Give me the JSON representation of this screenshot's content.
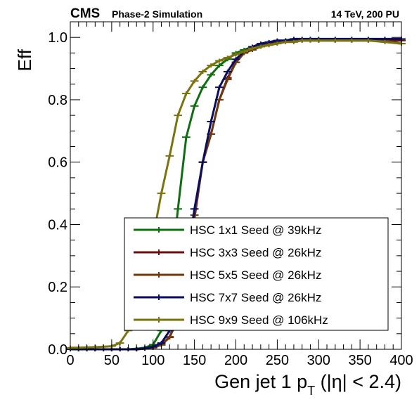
{
  "header": {
    "experiment": "CMS",
    "subtitle": "Phase-2 Simulation",
    "conditions": "14 TeV, 200 PU"
  },
  "chart_data": {
    "type": "line",
    "ylabel": "Eff",
    "xlabel_prefix": "Gen jet 1 p",
    "xlabel_sub": "T",
    "xlabel_suffix": " (|η| < 2.4)",
    "xlim": [
      0,
      400
    ],
    "ylim": [
      0,
      1.05
    ],
    "x_ticks": [
      0,
      50,
      100,
      150,
      200,
      250,
      300,
      350,
      400
    ],
    "x_tick_labels": [
      "0",
      "50",
      "100",
      "150",
      "200",
      "250",
      "300",
      "350",
      "400"
    ],
    "y_ticks": [
      0,
      0.2,
      0.4,
      0.6,
      0.8,
      1.0
    ],
    "y_tick_labels": [
      "0.0",
      "0.2",
      "0.4",
      "0.6",
      "0.8",
      "1.0"
    ],
    "grid": false,
    "legend_position": "bottom-right",
    "series": [
      {
        "name": "HSC 1x1 Seed @ 39kHz",
        "color": "#0f6e0f",
        "x": [
          0,
          10,
          20,
          30,
          40,
          50,
          60,
          70,
          80,
          90,
          100,
          110,
          120,
          130,
          140,
          150,
          160,
          170,
          180,
          190,
          200,
          210,
          220,
          230,
          240,
          250,
          260,
          270,
          280,
          290,
          300,
          320,
          340,
          360,
          380,
          400
        ],
        "y": [
          0.0,
          0.0,
          0.0,
          0.0,
          0.0,
          0.0,
          0.0,
          0.0,
          0.002,
          0.005,
          0.015,
          0.06,
          0.2,
          0.45,
          0.68,
          0.78,
          0.84,
          0.88,
          0.91,
          0.93,
          0.95,
          0.96,
          0.97,
          0.975,
          0.98,
          0.985,
          0.99,
          0.99,
          0.99,
          0.99,
          0.99,
          0.99,
          0.99,
          0.99,
          0.99,
          0.99
        ]
      },
      {
        "name": "HSC 3x3 Seed @ 26kHz",
        "color": "#6b0e0e",
        "x": [
          0,
          10,
          20,
          30,
          40,
          50,
          60,
          70,
          80,
          90,
          100,
          110,
          120,
          130,
          140,
          150,
          160,
          170,
          180,
          190,
          200,
          210,
          220,
          230,
          240,
          250,
          260,
          270,
          280,
          290,
          300,
          320,
          340,
          360,
          380,
          400
        ],
        "y": [
          0.0,
          0.0,
          0.0,
          0.0,
          0.0,
          0.0,
          0.0,
          0.0,
          0.0,
          0.002,
          0.005,
          0.015,
          0.04,
          0.1,
          0.22,
          0.42,
          0.6,
          0.69,
          0.8,
          0.87,
          0.92,
          0.95,
          0.96,
          0.97,
          0.98,
          0.985,
          0.99,
          0.99,
          0.99,
          0.99,
          0.99,
          0.99,
          0.99,
          0.99,
          0.99,
          0.99
        ]
      },
      {
        "name": "HSC 5x5 Seed @ 26kHz",
        "color": "#6e3a0d",
        "x": [
          0,
          10,
          20,
          30,
          40,
          50,
          60,
          70,
          80,
          90,
          100,
          110,
          120,
          130,
          140,
          150,
          160,
          170,
          180,
          190,
          200,
          210,
          220,
          230,
          240,
          250,
          260,
          270,
          280,
          290,
          300,
          320,
          340,
          360,
          380,
          400
        ],
        "y": [
          0.0,
          0.0,
          0.0,
          0.0,
          0.0,
          0.0,
          0.0,
          0.0,
          0.0,
          0.002,
          0.005,
          0.014,
          0.038,
          0.1,
          0.23,
          0.43,
          0.6,
          0.69,
          0.8,
          0.865,
          0.92,
          0.95,
          0.96,
          0.97,
          0.98,
          0.985,
          0.99,
          0.99,
          0.99,
          0.99,
          0.99,
          0.99,
          0.99,
          0.99,
          0.99,
          0.98
        ]
      },
      {
        "name": "HSC 7x7 Seed @ 26kHz",
        "color": "#0a0e5e",
        "x": [
          0,
          10,
          20,
          30,
          40,
          50,
          60,
          70,
          80,
          90,
          100,
          110,
          120,
          130,
          140,
          150,
          160,
          170,
          180,
          190,
          200,
          210,
          220,
          230,
          240,
          250,
          260,
          270,
          280,
          290,
          300,
          320,
          340,
          360,
          380,
          400
        ],
        "y": [
          0.0,
          0.0,
          0.0,
          0.0,
          0.0,
          0.0,
          0.0,
          0.0,
          0.0,
          0.003,
          0.008,
          0.02,
          0.06,
          0.13,
          0.27,
          0.45,
          0.6,
          0.73,
          0.84,
          0.89,
          0.93,
          0.955,
          0.97,
          0.98,
          0.985,
          0.99,
          0.99,
          0.995,
          0.995,
          0.995,
          0.995,
          0.995,
          0.995,
          0.995,
          0.995,
          0.995
        ]
      },
      {
        "name": "HSC 9x9 Seed @ 106kHz",
        "color": "#7a730f",
        "x": [
          0,
          10,
          20,
          30,
          40,
          50,
          60,
          70,
          80,
          90,
          100,
          110,
          120,
          130,
          140,
          150,
          160,
          170,
          180,
          190,
          200,
          210,
          220,
          230,
          240,
          250,
          260,
          270,
          280,
          290,
          300,
          320,
          340,
          360,
          380,
          400
        ],
        "y": [
          0.005,
          0.005,
          0.006,
          0.007,
          0.008,
          0.01,
          0.02,
          0.06,
          0.12,
          0.22,
          0.36,
          0.5,
          0.62,
          0.75,
          0.82,
          0.86,
          0.89,
          0.91,
          0.925,
          0.935,
          0.945,
          0.955,
          0.965,
          0.97,
          0.975,
          0.98,
          0.985,
          0.985,
          0.99,
          0.99,
          0.99,
          0.99,
          0.99,
          0.99,
          0.985,
          0.98
        ]
      }
    ]
  }
}
